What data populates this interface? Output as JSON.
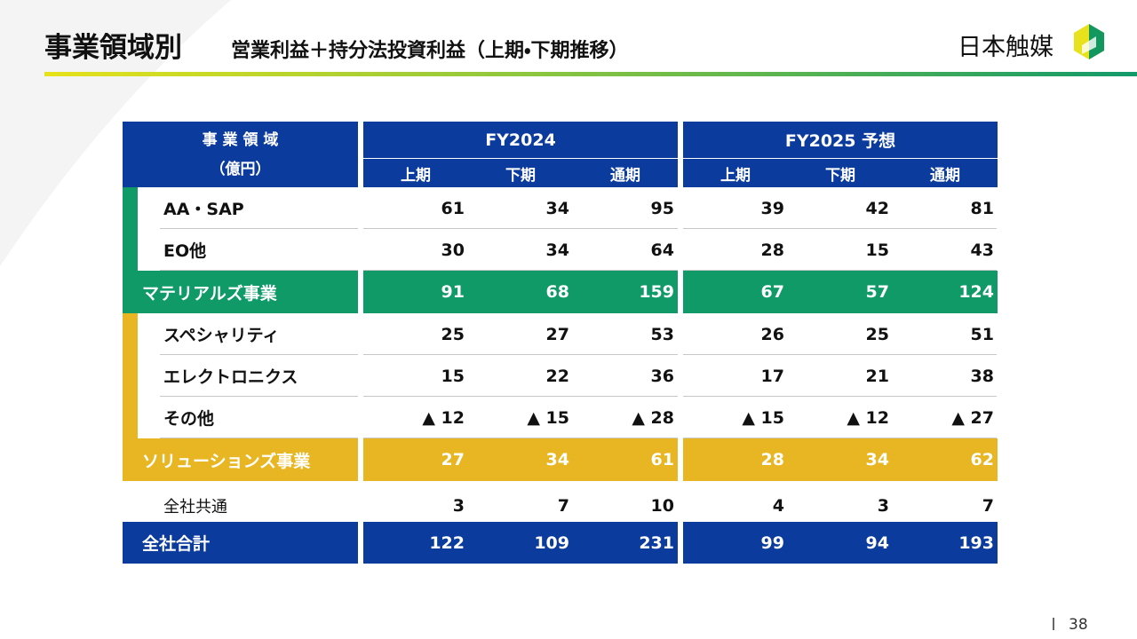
{
  "header": {
    "title": "事業領域別",
    "subtitle": "営業利益＋持分法投資利益（上期・下期推移）",
    "logo": "日本触媒"
  },
  "table": {
    "header_label": [
      "事 業 領 域",
      "（億円）"
    ],
    "groups": [
      {
        "name": "FY2024",
        "periods": [
          "上期",
          "下期",
          "通期"
        ]
      },
      {
        "name": "FY2025 予想",
        "periods": [
          "上期",
          "下期",
          "通期"
        ]
      }
    ],
    "segments": [
      {
        "color": "#0f9a68",
        "items": [
          {
            "label": "AA・SAP",
            "values": [
              61,
              34,
              95,
              39,
              42,
              81
            ]
          },
          {
            "label": "EO他",
            "values": [
              30,
              34,
              64,
              28,
              15,
              43
            ]
          }
        ],
        "subtotal": {
          "label": "マテリアルズ事業",
          "values": [
            91,
            68,
            159,
            67,
            57,
            124
          ]
        }
      },
      {
        "color": "#e8b622",
        "items": [
          {
            "label": "スペシャリティ",
            "values": [
              25,
              27,
              53,
              26,
              25,
              51
            ]
          },
          {
            "label": "エレクトロニクス",
            "values": [
              15,
              22,
              36,
              17,
              21,
              38
            ]
          },
          {
            "label": "その他",
            "values": [
              "▲ 12",
              "▲ 15",
              "▲ 28",
              "▲ 15",
              "▲ 12",
              "▲ 27"
            ]
          }
        ],
        "subtotal": {
          "label": "ソリューションズ事業",
          "values": [
            27,
            34,
            61,
            28,
            34,
            62
          ]
        }
      }
    ],
    "common": {
      "label": "全社共通",
      "values": [
        3,
        7,
        10,
        4,
        3,
        7
      ]
    },
    "total": {
      "label": "全社合計",
      "values": [
        122,
        109,
        231,
        99,
        94,
        193
      ]
    }
  },
  "footer": {
    "page": "38"
  }
}
